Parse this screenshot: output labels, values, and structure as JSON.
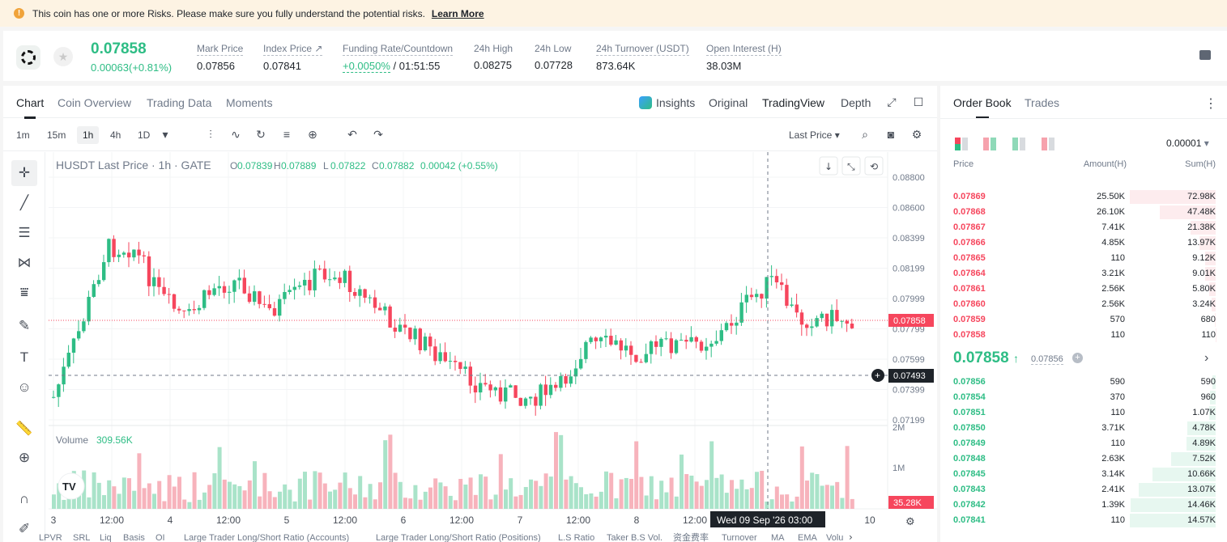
{
  "banner": {
    "text": "This coin has one or more Risks. Please make sure you fully understand the potential risks.",
    "link": "Learn More"
  },
  "ticker": {
    "price": "0.07858",
    "change": "0.00063(+0.81%)",
    "stats": [
      {
        "label": "Mark Price",
        "value": "0.07856"
      },
      {
        "label": "Index Price ↗",
        "value": "0.07841"
      },
      {
        "label": "Funding Rate/Countdown",
        "value_green": "+0.0050%",
        "value": " / 01:51:55"
      },
      {
        "label": "24h High",
        "value": "0.08275"
      },
      {
        "label": "24h Low",
        "value": "0.07728"
      },
      {
        "label": "24h Turnover (USDT)",
        "value": "873.64K"
      },
      {
        "label": "Open Interest (H)",
        "value": "38.03M"
      }
    ]
  },
  "chart_tabs": {
    "chart": "Chart",
    "overview": "Coin Overview",
    "trading_data": "Trading Data",
    "moments": "Moments",
    "insights": "Insights",
    "original": "Original",
    "tradingview": "TradingView",
    "depth": "Depth"
  },
  "timeframes": [
    "1m",
    "15m",
    "1h",
    "4h",
    "1D"
  ],
  "last_price_select": "Last Price",
  "legend": {
    "symbol": "HUSDT Last Price · 1h · GATE",
    "o": "0.07839",
    "h": "0.07889",
    "l": "0.07822",
    "c": "0.07882",
    "chg": "0.00042 (+0.55%)",
    "o_lbl": "O",
    "h_lbl": "H",
    "l_lbl": "L",
    "c_lbl": "C"
  },
  "volume_legend": {
    "label": "Volume",
    "value": "309.56K"
  },
  "price_axis": [
    "0.08800",
    "0.08600",
    "0.08399",
    "0.08199",
    "0.07999",
    "0.07799",
    "0.07599",
    "0.07399",
    "0.07199"
  ],
  "volume_axis": [
    "2M",
    "1M"
  ],
  "price_tag": "0.07858",
  "cross_tag": "0.07493",
  "volume_tag": "35.28K",
  "time_axis": [
    "3",
    "12:00",
    "4",
    "12:00",
    "5",
    "12:00",
    "6",
    "12:00",
    "7",
    "12:00",
    "8",
    "12:00",
    "10"
  ],
  "cross_time": "Wed 09 Sep '26    03:00",
  "indicators": [
    "LPVR",
    "SRL",
    "Liq",
    "Basis",
    "OI",
    "Large Trader Long/Short Ratio (Accounts)",
    "Large Trader Long/Short Ratio (Positions)",
    "L.S Ratio",
    "Taker B.S Vol.",
    "资金费率",
    "Turnover",
    "MA",
    "EMA",
    "Volu"
  ],
  "orderbook": {
    "tab_book": "Order Book",
    "tab_trades": "Trades",
    "precision": "0.00001",
    "headers": {
      "price": "Price",
      "amount": "Amount(H)",
      "sum": "Sum(H)"
    },
    "asks": [
      {
        "price": "0.07869",
        "amount": "25.50K",
        "sum": "72.98K",
        "depth": 1.0
      },
      {
        "price": "0.07868",
        "amount": "26.10K",
        "sum": "47.48K",
        "depth": 0.65
      },
      {
        "price": "0.07867",
        "amount": "7.41K",
        "sum": "21.38K",
        "depth": 0.29
      },
      {
        "price": "0.07866",
        "amount": "4.85K",
        "sum": "13.97K",
        "depth": 0.19
      },
      {
        "price": "0.07865",
        "amount": "110",
        "sum": "9.12K",
        "depth": 0.125
      },
      {
        "price": "0.07864",
        "amount": "3.21K",
        "sum": "9.01K",
        "depth": 0.123
      },
      {
        "price": "0.07861",
        "amount": "2.56K",
        "sum": "5.80K",
        "depth": 0.08
      },
      {
        "price": "0.07860",
        "amount": "2.56K",
        "sum": "3.24K",
        "depth": 0.044
      },
      {
        "price": "0.07859",
        "amount": "570",
        "sum": "680",
        "depth": 0.01
      },
      {
        "price": "0.07858",
        "amount": "110",
        "sum": "110",
        "depth": 0.002
      }
    ],
    "mid_price": "0.07858",
    "mid_mark": "0.07856",
    "bids": [
      {
        "price": "0.07856",
        "amount": "590",
        "sum": "590",
        "depth": 0.04
      },
      {
        "price": "0.07854",
        "amount": "370",
        "sum": "960",
        "depth": 0.066
      },
      {
        "price": "0.07851",
        "amount": "110",
        "sum": "1.07K",
        "depth": 0.074
      },
      {
        "price": "0.07850",
        "amount": "3.71K",
        "sum": "4.78K",
        "depth": 0.33
      },
      {
        "price": "0.07849",
        "amount": "110",
        "sum": "4.89K",
        "depth": 0.336
      },
      {
        "price": "0.07848",
        "amount": "2.63K",
        "sum": "7.52K",
        "depth": 0.52
      },
      {
        "price": "0.07845",
        "amount": "3.14K",
        "sum": "10.66K",
        "depth": 0.735
      },
      {
        "price": "0.07843",
        "amount": "2.41K",
        "sum": "13.07K",
        "depth": 0.9
      },
      {
        "price": "0.07842",
        "amount": "1.39K",
        "sum": "14.46K",
        "depth": 0.995
      },
      {
        "price": "0.07841",
        "amount": "110",
        "sum": "14.57K",
        "depth": 1.0
      }
    ]
  },
  "colors": {
    "up": "#2ebd85",
    "down": "#f6465d"
  }
}
